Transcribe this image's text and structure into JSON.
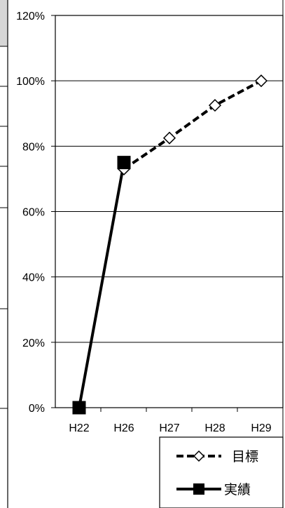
{
  "chart_data": {
    "type": "line",
    "categories": [
      "H22",
      "H26",
      "H27",
      "H28",
      "H29"
    ],
    "y_tick_labels": [
      "0%",
      "20%",
      "40%",
      "60%",
      "80%",
      "100%",
      "120%"
    ],
    "ylim": [
      0,
      120
    ],
    "y_unit": "%",
    "grid": "horizontal",
    "legend_position": "bottom-right",
    "series": [
      {
        "name": "目標",
        "style": "dashed",
        "marker": "open-diamond",
        "color": "#000000",
        "values": [
          null,
          73,
          82.5,
          92.5,
          100
        ]
      },
      {
        "name": "実績",
        "style": "solid",
        "marker": "filled-square",
        "color": "#000000",
        "values": [
          0,
          75,
          null,
          null,
          null
        ]
      }
    ]
  }
}
